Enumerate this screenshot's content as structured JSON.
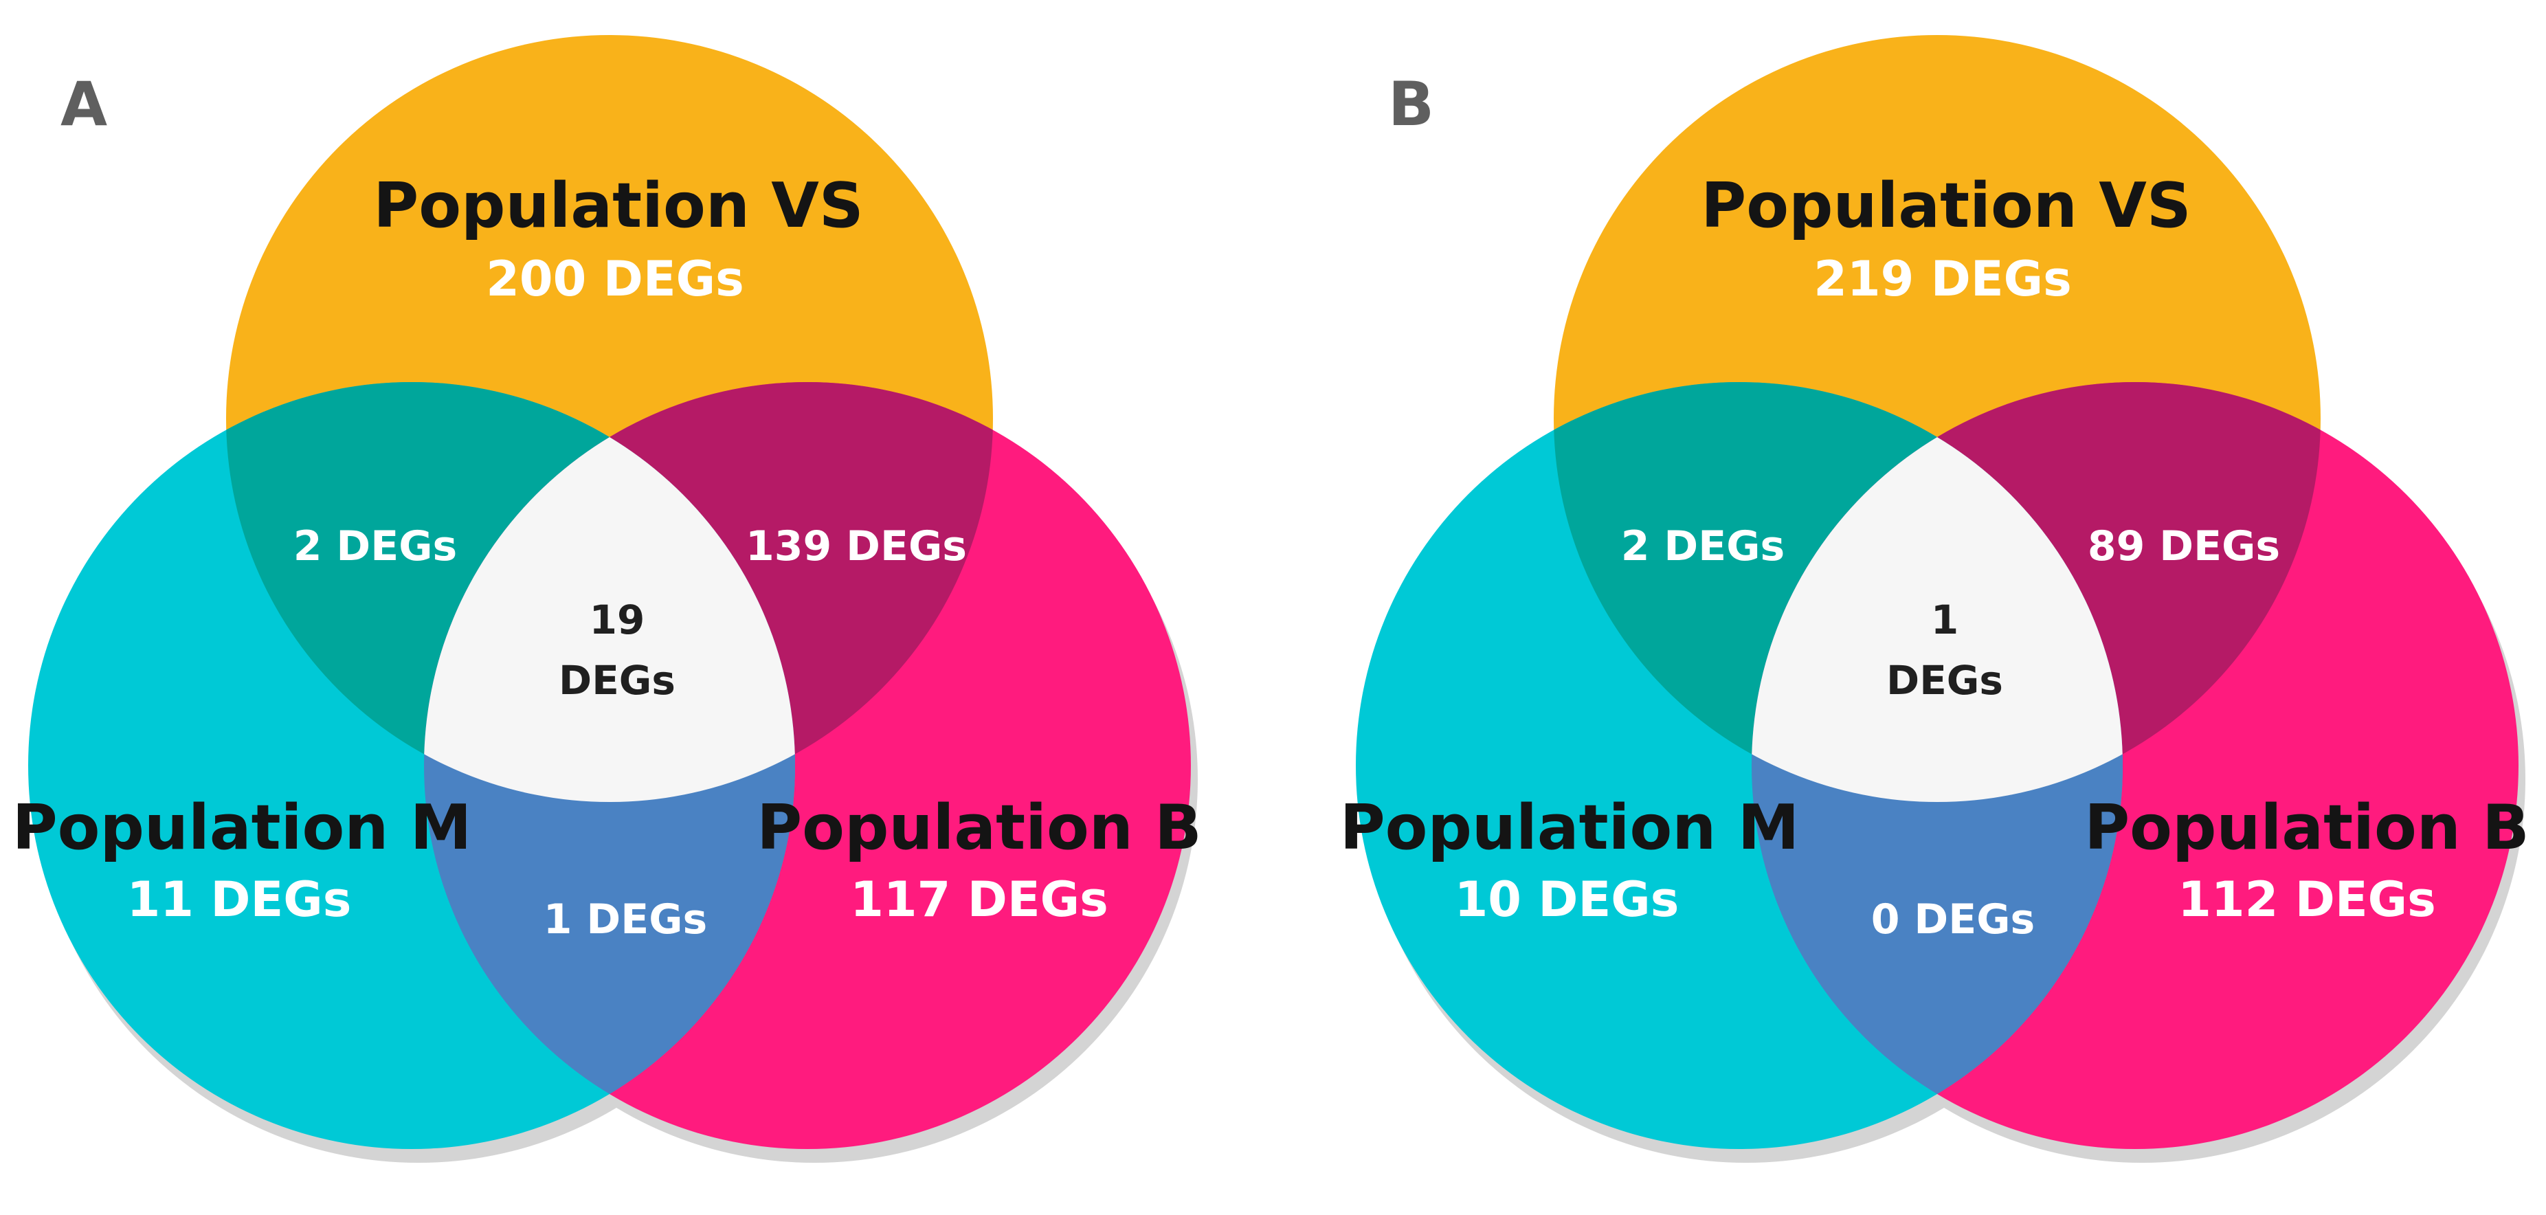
{
  "colors": {
    "vs": "#F9B21A",
    "m": "#00C9D6",
    "b": "#FF1B7E",
    "vs_m": "#00A69B",
    "vs_b": "#B51A66",
    "m_b": "#4A82C3",
    "center": "#F6F6F6"
  },
  "panels": [
    {
      "label": "A",
      "vs": {
        "name": "Population VS",
        "count": "200 DEGs"
      },
      "m": {
        "name": "Population M",
        "count": "11 DEGs"
      },
      "b": {
        "name": "Population B",
        "count": "117 DEGs"
      },
      "vs_m": "2 DEGs",
      "vs_b": "139 DEGs",
      "m_b": "1 DEGs",
      "center": {
        "number": "19",
        "unit": "DEGs"
      }
    },
    {
      "label": "B",
      "vs": {
        "name": "Population VS",
        "count": "219 DEGs"
      },
      "m": {
        "name": "Population M",
        "count": "10 DEGs"
      },
      "b": {
        "name": "Population B",
        "count": "112 DEGs"
      },
      "vs_m": "2 DEGs",
      "vs_b": "89 DEGs",
      "m_b": "0 DEGs",
      "center": {
        "number": "1",
        "unit": "DEGs"
      }
    }
  ]
}
